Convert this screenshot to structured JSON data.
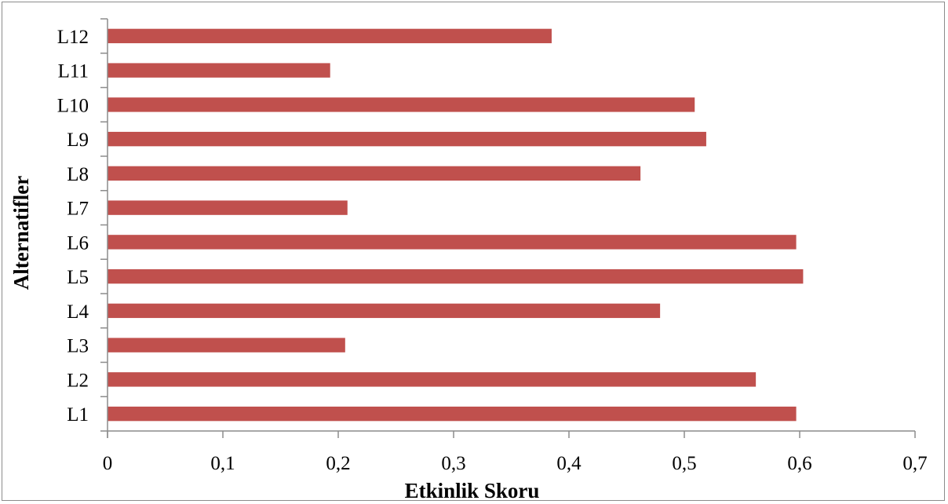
{
  "chart_data": {
    "type": "bar",
    "orientation": "horizontal",
    "categories": [
      "L1",
      "L2",
      "L3",
      "L4",
      "L5",
      "L6",
      "L7",
      "L8",
      "L9",
      "L10",
      "L11",
      "L12"
    ],
    "values": [
      0.597,
      0.562,
      0.206,
      0.479,
      0.603,
      0.597,
      0.208,
      0.462,
      0.519,
      0.509,
      0.193,
      0.385
    ],
    "xlabel": "Etkinlik Skoru",
    "ylabel": "Alternatifler",
    "xlim": [
      0,
      0.7
    ],
    "x_ticks": [
      "0",
      "0,1",
      "0,2",
      "0,3",
      "0,4",
      "0,5",
      "0,6",
      "0,7"
    ],
    "grid": false,
    "legend": "none",
    "bar_color": "#c0504d"
  }
}
